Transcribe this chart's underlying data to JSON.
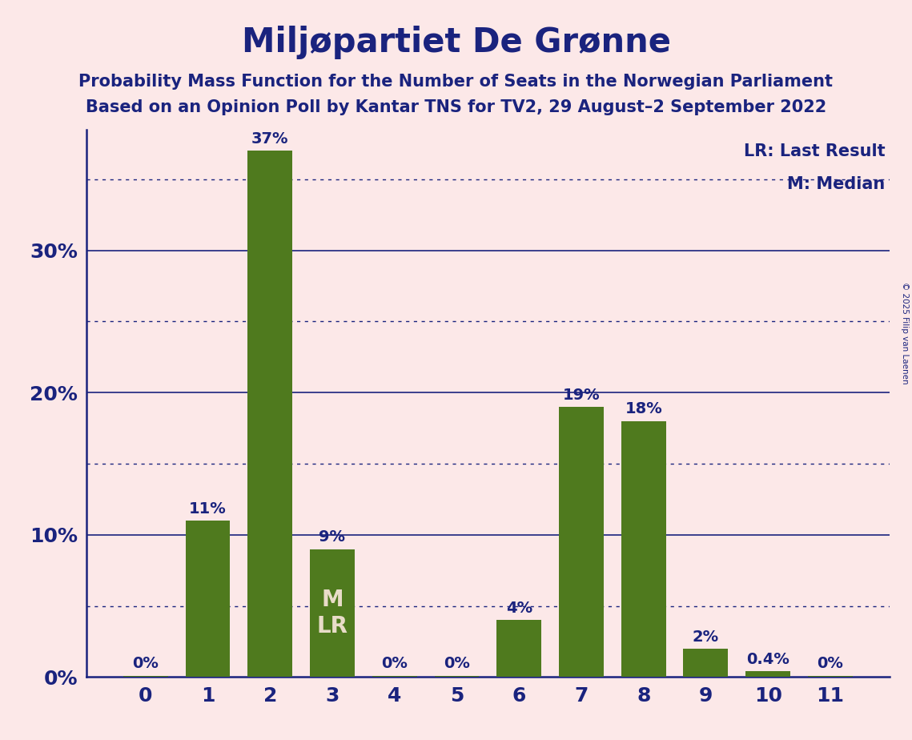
{
  "title": "Miljøpartiet De Grønne",
  "subtitle1": "Probability Mass Function for the Number of Seats in the Norwegian Parliament",
  "subtitle2": "Based on an Opinion Poll by Kantar TNS for TV2, 29 August–2 September 2022",
  "copyright": "© 2025 Filip van Laenen",
  "categories": [
    0,
    1,
    2,
    3,
    4,
    5,
    6,
    7,
    8,
    9,
    10,
    11
  ],
  "values": [
    0.001,
    0.11,
    0.37,
    0.09,
    0.001,
    0.001,
    0.04,
    0.19,
    0.18,
    0.02,
    0.004,
    0.001
  ],
  "bar_labels": [
    "0%",
    "11%",
    "37%",
    "9%",
    "0%",
    "0%",
    "4%",
    "19%",
    "18%",
    "2%",
    "0.4%",
    "0%"
  ],
  "bar_color": "#4f7a1e",
  "background_color": "#fce8e8",
  "text_color": "#1a237e",
  "inside_label_color": "#e8dcc8",
  "median_bar_idx": 3,
  "median_label": "M",
  "lr_label": "LR",
  "legend_lr": "LR: Last Result",
  "legend_m": "M: Median",
  "ylim_max": 0.385,
  "major_yticks": [
    0.0,
    0.1,
    0.2,
    0.3
  ],
  "minor_yticks": [
    0.05,
    0.15,
    0.25,
    0.35
  ],
  "title_fontsize": 30,
  "subtitle_fontsize": 15,
  "bar_label_fontsize": 14,
  "axis_tick_fontsize": 18,
  "legend_fontsize": 15,
  "inside_label_fontsize": 20,
  "bar_width": 0.72
}
